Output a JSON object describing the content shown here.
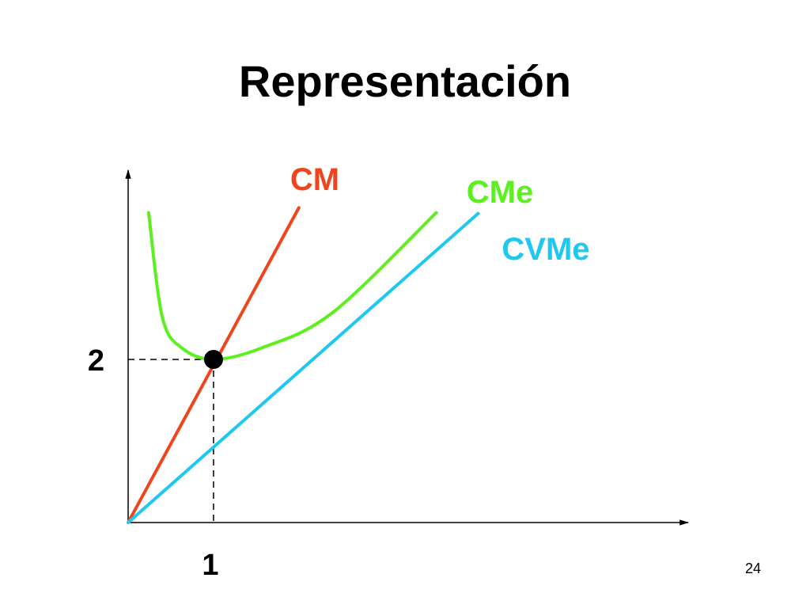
{
  "chart_data": {
    "type": "line",
    "title": "Representación",
    "page_number": "24",
    "xlim": [
      0,
      6.56
    ],
    "ylim": [
      0,
      4.32
    ],
    "xticks": [
      1
    ],
    "yticks": [
      2
    ],
    "series": [
      {
        "name": "CM",
        "color": "#f0441e",
        "x": [
          0,
          2
        ],
        "values": [
          0,
          3.86
        ]
      },
      {
        "name": "CMe",
        "color": "#5bf01e",
        "x": [
          0.24,
          0.4,
          0.63,
          1,
          1.56,
          2.39,
          3.61
        ],
        "values": [
          3.8,
          2.52,
          2.14,
          2,
          2.14,
          2.57,
          3.8
        ]
      },
      {
        "name": "CVMe",
        "color": "#1ec8f0",
        "x": [
          0,
          4.1
        ],
        "values": [
          0,
          3.79
        ]
      }
    ]
  }
}
